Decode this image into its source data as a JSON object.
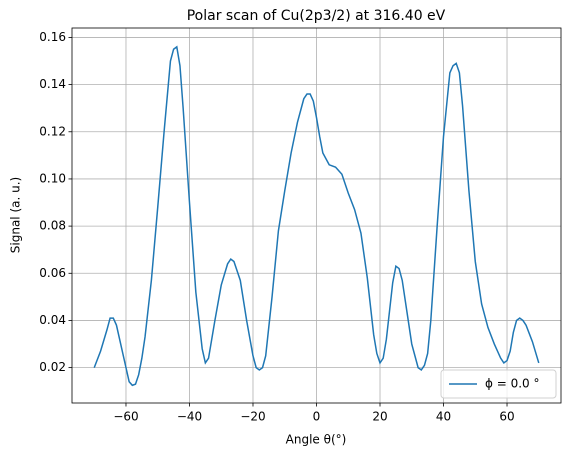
{
  "chart_data": {
    "type": "line",
    "title": "Polar scan of Cu(2p3/2) at 316.40 eV",
    "x_label": "Angle θ(°)",
    "y_label": "Signal (a. u.)",
    "x": [
      -70,
      -68,
      -66,
      -65,
      -64,
      -63,
      -62,
      -60,
      -59,
      -58,
      -57,
      -56,
      -55,
      -54,
      -52,
      -50,
      -48,
      -46,
      -45,
      -44,
      -43,
      -42,
      -40,
      -38,
      -36,
      -35,
      -34,
      -32,
      -30,
      -28,
      -27,
      -26,
      -24,
      -22,
      -20,
      -19,
      -18,
      -17,
      -16,
      -14,
      -12,
      -10,
      -8,
      -6,
      -4,
      -3,
      -2,
      -1,
      0,
      1,
      2,
      4,
      6,
      8,
      10,
      12,
      14,
      16,
      18,
      19,
      20,
      21,
      22,
      24,
      25,
      26,
      27,
      28,
      30,
      32,
      33,
      34,
      35,
      36,
      38,
      40,
      42,
      43,
      44,
      45,
      46,
      48,
      50,
      52,
      54,
      56,
      58,
      59,
      60,
      61,
      62,
      63,
      64,
      65,
      66,
      68,
      70
    ],
    "series": [
      {
        "name": "ϕ = 0.0 °",
        "color": "#1f77b4",
        "values": [
          0.02,
          0.027,
          0.036,
          0.041,
          0.041,
          0.038,
          0.032,
          0.02,
          0.014,
          0.0125,
          0.013,
          0.017,
          0.024,
          0.033,
          0.057,
          0.088,
          0.12,
          0.15,
          0.155,
          0.156,
          0.148,
          0.13,
          0.09,
          0.052,
          0.028,
          0.022,
          0.024,
          0.04,
          0.055,
          0.064,
          0.066,
          0.065,
          0.057,
          0.04,
          0.025,
          0.02,
          0.019,
          0.02,
          0.025,
          0.05,
          0.078,
          0.095,
          0.111,
          0.124,
          0.134,
          0.136,
          0.136,
          0.133,
          0.126,
          0.118,
          0.111,
          0.106,
          0.105,
          0.102,
          0.094,
          0.087,
          0.077,
          0.058,
          0.034,
          0.026,
          0.022,
          0.024,
          0.032,
          0.056,
          0.063,
          0.062,
          0.057,
          0.048,
          0.03,
          0.02,
          0.019,
          0.021,
          0.026,
          0.04,
          0.08,
          0.118,
          0.145,
          0.148,
          0.149,
          0.145,
          0.131,
          0.095,
          0.065,
          0.047,
          0.037,
          0.03,
          0.024,
          0.022,
          0.023,
          0.027,
          0.035,
          0.04,
          0.041,
          0.04,
          0.038,
          0.031,
          0.022
        ]
      }
    ],
    "xlim": [
      -77,
      77
    ],
    "xticks": [
      {
        "value": -60,
        "label": "−60"
      },
      {
        "value": -40,
        "label": "−40"
      },
      {
        "value": -20,
        "label": "−20"
      },
      0,
      20,
      40,
      60
    ],
    "ylim": [
      0.005,
      0.164
    ],
    "yticks": [
      0.02,
      0.04,
      0.06,
      0.08,
      {
        "value": 0.1,
        "label": "0.10"
      },
      0.12,
      0.14,
      0.16
    ],
    "grid": true,
    "legend": "lower right"
  }
}
